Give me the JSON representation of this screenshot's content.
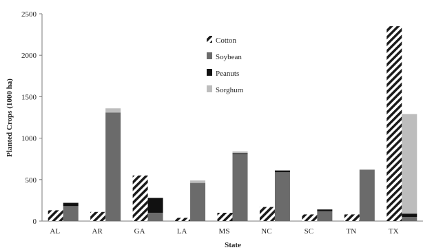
{
  "chart_data": {
    "type": "bar",
    "xlabel": "State",
    "ylabel": "Planted Crops (1000 ha)",
    "ylim": [
      0,
      2500
    ],
    "yticks": [
      0,
      500,
      1000,
      1500,
      2000,
      2500
    ],
    "grid": false,
    "legend": "center",
    "categories": [
      "AL",
      "AR",
      "GA",
      "LA",
      "MS",
      "NC",
      "SC",
      "TN",
      "TX"
    ],
    "series": [
      {
        "name": "Cotton",
        "stack": "left",
        "values": [
          130,
          110,
          550,
          40,
          100,
          170,
          80,
          80,
          2350
        ]
      },
      {
        "name": "Soybean",
        "stack": "right",
        "values": [
          180,
          1310,
          100,
          460,
          810,
          590,
          120,
          620,
          50
        ]
      },
      {
        "name": "Peanuts",
        "stack": "right",
        "values": [
          40,
          0,
          180,
          0,
          10,
          20,
          20,
          0,
          40
        ]
      },
      {
        "name": "Sorghum",
        "stack": "right",
        "values": [
          0,
          50,
          0,
          30,
          20,
          0,
          0,
          0,
          1200
        ]
      }
    ],
    "colors": {
      "Cotton": "#1a1a1a",
      "Soybean": "#6b6b6b",
      "Peanuts": "#111111",
      "Sorghum": "#bdbdbd"
    }
  }
}
